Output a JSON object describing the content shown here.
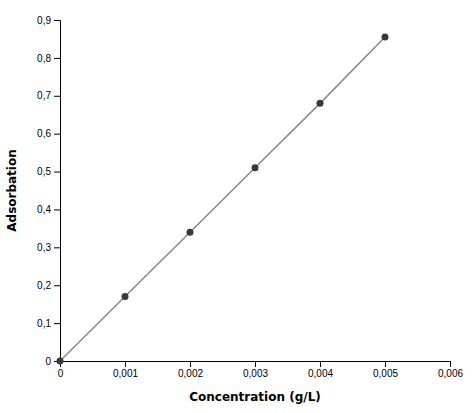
{
  "chart_data": {
    "type": "line",
    "x": [
      0,
      0.001,
      0.002,
      0.003,
      0.004,
      0.005
    ],
    "values": [
      0.0,
      0.17,
      0.34,
      0.51,
      0.68,
      0.855
    ],
    "xlabel": "Concentration (g/L)",
    "ylabel": "Adsorbation",
    "xlim": [
      0,
      0.006
    ],
    "ylim": [
      0,
      0.9
    ],
    "xticks": [
      0,
      {
        "value": 0.001,
        "label": "0,001"
      },
      {
        "value": 0.002,
        "label": "0,002"
      },
      {
        "value": 0.003,
        "label": "0,003"
      },
      {
        "value": 0.004,
        "label": "0,004"
      },
      {
        "value": 0.005,
        "label": "0,005"
      },
      {
        "value": 0.006,
        "label": "0,006"
      }
    ],
    "yticks": [
      0,
      {
        "value": 0.1,
        "label": "0,1"
      },
      {
        "value": 0.2,
        "label": "0,2"
      },
      {
        "value": 0.3,
        "label": "0,3"
      },
      {
        "value": 0.4,
        "label": "0,4"
      },
      {
        "value": 0.5,
        "label": "0,5"
      },
      {
        "value": 0.6,
        "label": "0,6"
      },
      {
        "value": 0.7,
        "label": "0,7"
      },
      {
        "value": 0.8,
        "label": "0,8"
      },
      {
        "value": 0.9,
        "label": "0,9"
      }
    ],
    "color": "#888888",
    "marker": "circle",
    "grid": false
  }
}
